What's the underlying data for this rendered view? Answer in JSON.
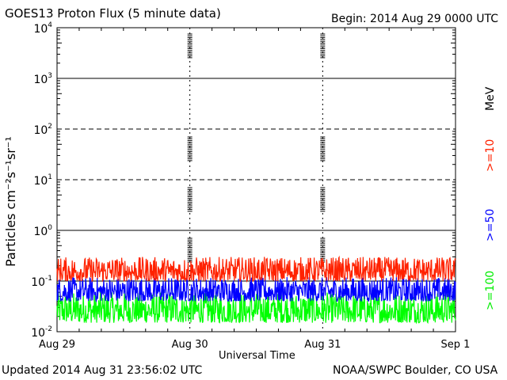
{
  "header": {
    "title": "GOES13 Proton Flux (5 minute data)",
    "begin": "Begin: 2014 Aug 29 0000 UTC"
  },
  "footer": {
    "updated": "Updated 2014 Aug 31 23:56:02 UTC",
    "credit": "NOAA/SWPC Boulder, CO USA"
  },
  "chart_data": {
    "type": "line",
    "title": "GOES13 Proton Flux (5 minute data)",
    "xlabel": "Universal Time",
    "ylabel": "Particles cm⁻²s⁻¹sr⁻¹",
    "y_scale": "log",
    "ylim": [
      0.01,
      10000
    ],
    "y_ticks": [
      0.01,
      0.1,
      1,
      10,
      100,
      1000,
      10000
    ],
    "y_tick_labels": [
      {
        "base": "10",
        "exp": "-2"
      },
      {
        "base": "10",
        "exp": "-1"
      },
      {
        "base": "10",
        "exp": "0"
      },
      {
        "base": "10",
        "exp": "1"
      },
      {
        "base": "10",
        "exp": "2"
      },
      {
        "base": "10",
        "exp": "3"
      },
      {
        "base": "10",
        "exp": "4"
      }
    ],
    "x_ticks": [
      "Aug 29",
      "Aug 30",
      "Aug 31",
      "Sep 1"
    ],
    "xlim": [
      "2014-08-29 00:00",
      "2014-09-01 00:00"
    ],
    "alert_thresholds": [
      10,
      100
    ],
    "unit_label": "MeV",
    "series": [
      {
        "name": ">=10",
        "color": "#ff2200",
        "typical_range": [
          0.1,
          0.3
        ],
        "median": 0.15
      },
      {
        "name": ">=50",
        "color": "#0000ff",
        "typical_range": [
          0.04,
          0.12
        ],
        "median": 0.07
      },
      {
        "name": ">=100",
        "color": "#00ff00",
        "typical_range": [
          0.015,
          0.06
        ],
        "median": 0.03
      }
    ]
  }
}
